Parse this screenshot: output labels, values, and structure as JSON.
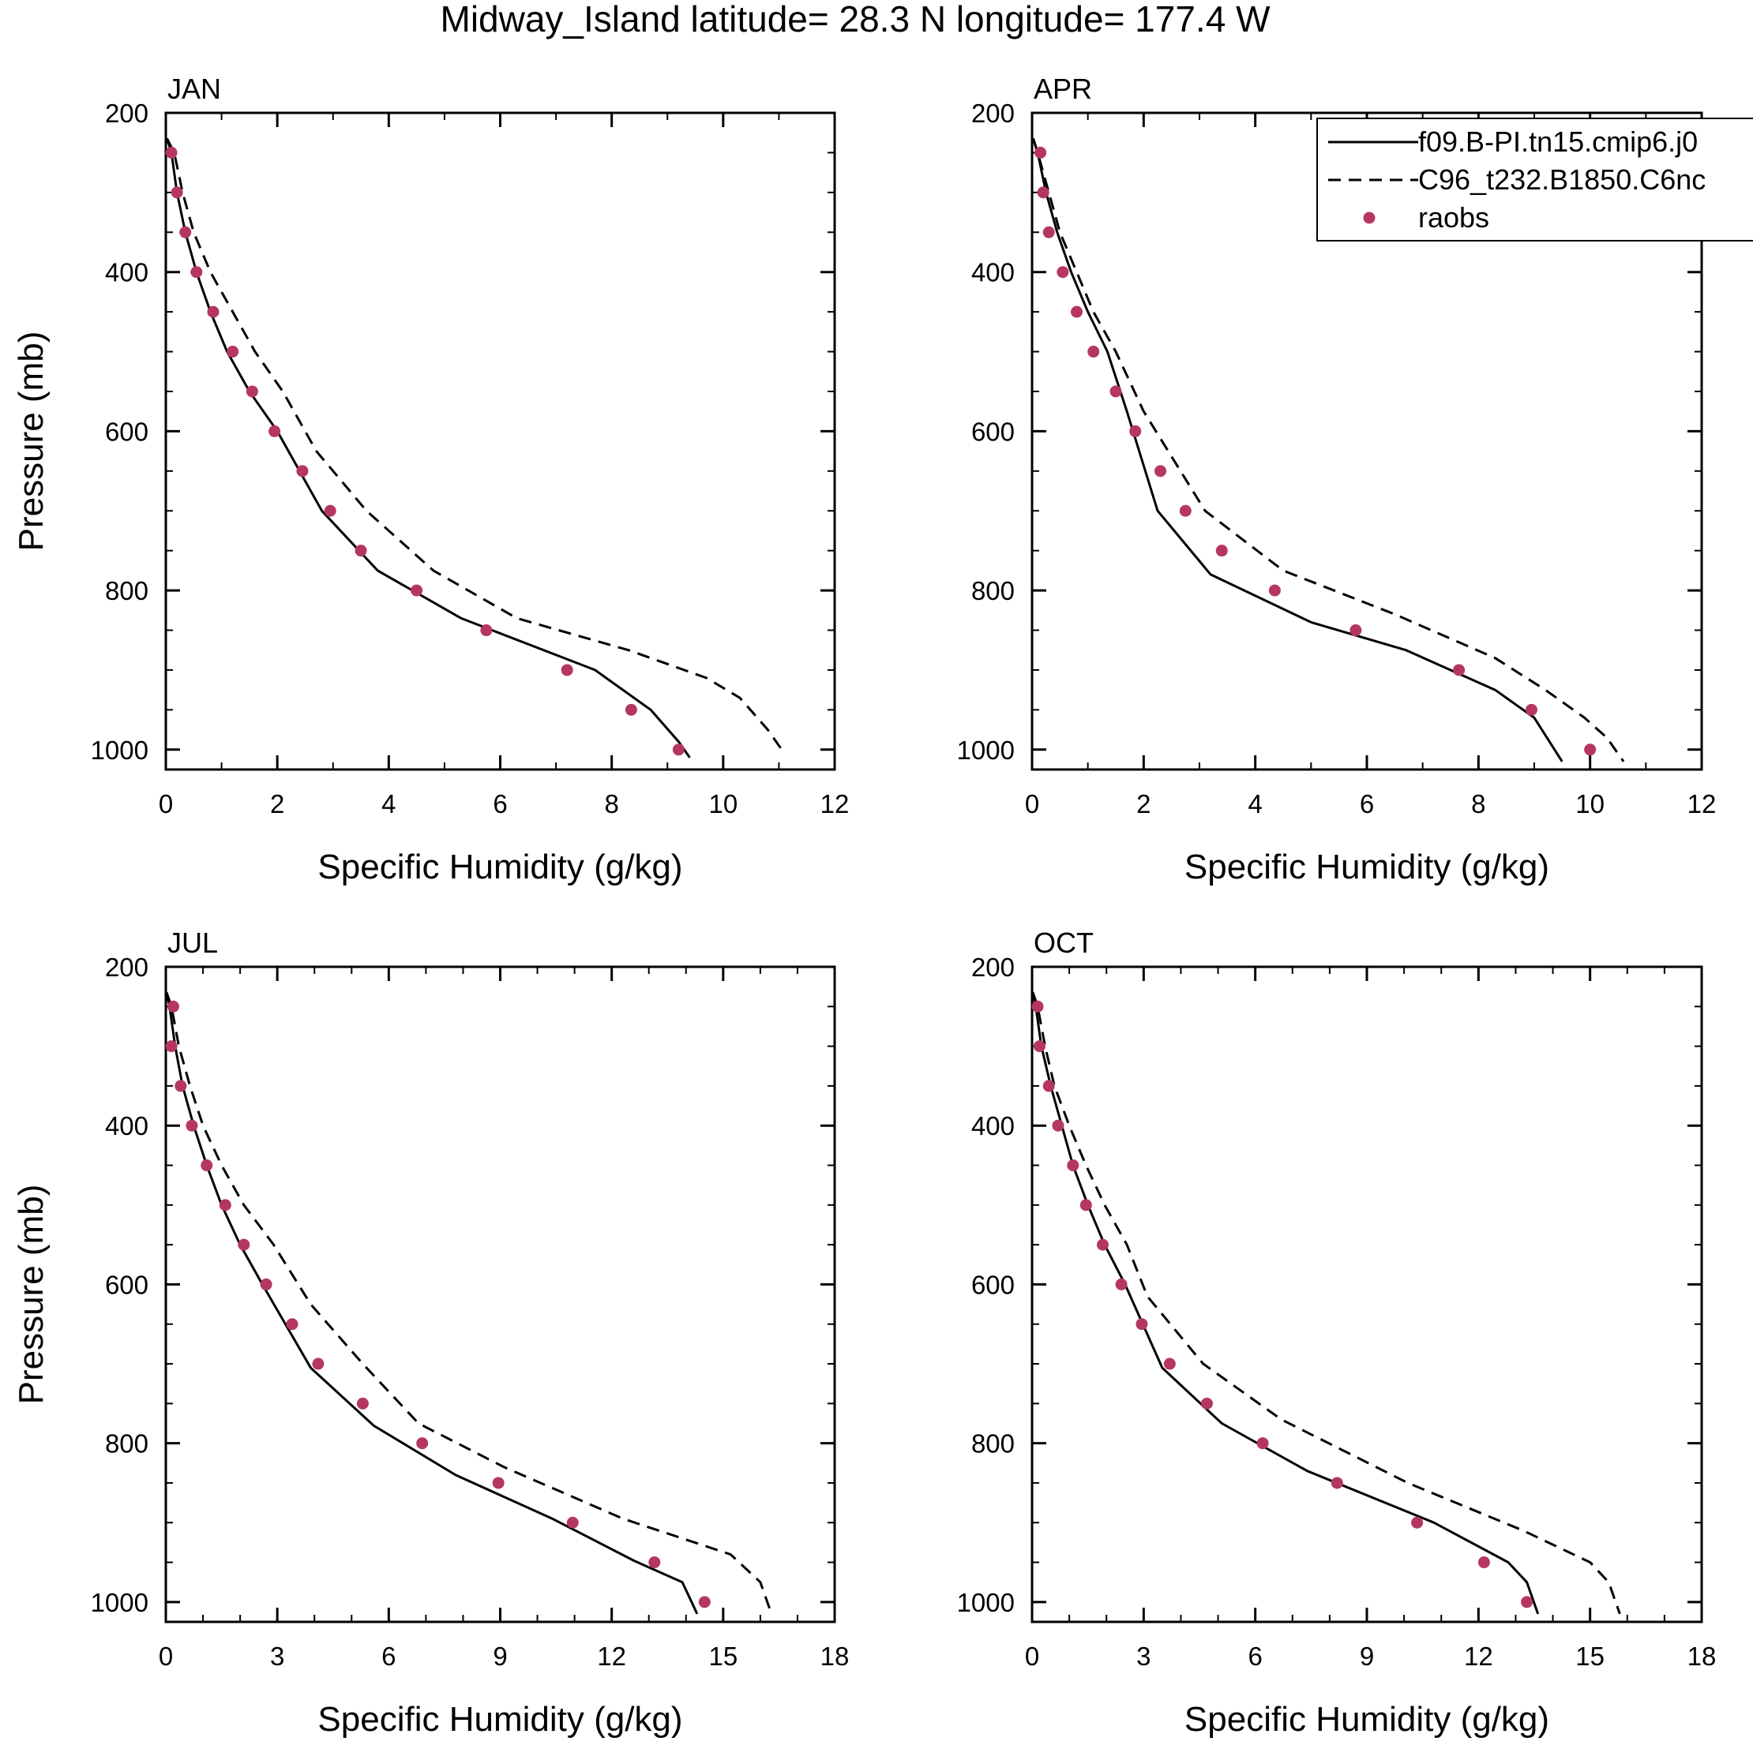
{
  "figure_title": "Midway_Island  latitude= 28.3 N longitude= 177.4 W",
  "colors": {
    "obs": "#b5375f",
    "axis": "#000000"
  },
  "legend": {
    "entries": [
      {
        "label": "f09.B-PI.tn15.cmip6.j0",
        "style": "solid"
      },
      {
        "label": "C96_t232.B1850.C6nc",
        "style": "dashed"
      },
      {
        "label": "raobs",
        "style": "marker"
      }
    ]
  },
  "chart_data": [
    {
      "type": "line",
      "title": "JAN",
      "xlabel": "Specific Humidity (g/kg)",
      "ylabel": "Pressure (mb)",
      "xlim": [
        0,
        12
      ],
      "ylim": [
        200,
        1025
      ],
      "xticks": [
        0,
        2,
        4,
        6,
        8,
        10,
        12
      ],
      "yticks": [
        200,
        400,
        600,
        800,
        1000
      ],
      "series": [
        {
          "name": "f09.B-PI.tn15.cmip6.j0",
          "style": "solid",
          "x": [
            0.02,
            0.1,
            0.2,
            0.35,
            0.55,
            0.8,
            1.1,
            1.5,
            2.0,
            2.8,
            3.8,
            5.3,
            7.7,
            8.7,
            9.2,
            9.4
          ],
          "y": [
            232,
            250,
            300,
            350,
            400,
            450,
            500,
            550,
            600,
            700,
            775,
            835,
            900,
            950,
            990,
            1010
          ]
        },
        {
          "name": "C96_t232.B1850.C6nc",
          "style": "dashed",
          "x": [
            0.02,
            0.15,
            0.3,
            0.5,
            0.8,
            1.2,
            1.6,
            2.1,
            2.7,
            3.6,
            4.8,
            6.3,
            8.3,
            9.7,
            10.3,
            10.8,
            11.1
          ],
          "y": [
            232,
            250,
            300,
            350,
            400,
            450,
            500,
            550,
            625,
            700,
            775,
            835,
            875,
            910,
            935,
            975,
            1005
          ]
        },
        {
          "name": "raobs",
          "style": "marker",
          "x": [
            0.1,
            0.2,
            0.35,
            0.55,
            0.85,
            1.2,
            1.55,
            1.95,
            2.45,
            2.95,
            3.5,
            4.5,
            5.75,
            7.2,
            8.35,
            9.2
          ],
          "y": [
            250,
            300,
            350,
            400,
            450,
            500,
            550,
            600,
            650,
            700,
            750,
            800,
            850,
            900,
            950,
            1000
          ]
        }
      ]
    },
    {
      "type": "line",
      "title": "APR",
      "xlabel": "Specific Humidity (g/kg)",
      "ylabel": "",
      "xlim": [
        0,
        12
      ],
      "ylim": [
        200,
        1025
      ],
      "xticks": [
        0,
        2,
        4,
        6,
        8,
        10,
        12
      ],
      "yticks": [
        200,
        400,
        600,
        800,
        1000
      ],
      "series": [
        {
          "name": "f09.B-PI.tn15.cmip6.j0",
          "style": "solid",
          "x": [
            0.02,
            0.1,
            0.25,
            0.45,
            0.7,
            1.0,
            1.35,
            1.7,
            2.25,
            3.2,
            5.0,
            6.7,
            8.3,
            9.0,
            9.5
          ],
          "y": [
            232,
            250,
            300,
            350,
            400,
            450,
            500,
            575,
            700,
            780,
            840,
            875,
            925,
            960,
            1015
          ]
        },
        {
          "name": "C96_t232.B1850.C6nc",
          "style": "dashed",
          "x": [
            0.02,
            0.1,
            0.3,
            0.5,
            0.8,
            1.1,
            1.5,
            2.0,
            3.1,
            4.5,
            6.5,
            8.3,
            9.2,
            9.9,
            10.3,
            10.6
          ],
          "y": [
            232,
            250,
            300,
            350,
            400,
            450,
            500,
            575,
            700,
            775,
            830,
            885,
            925,
            960,
            985,
            1015
          ]
        },
        {
          "name": "raobs",
          "style": "marker",
          "x": [
            0.15,
            0.2,
            0.3,
            0.55,
            0.8,
            1.1,
            1.5,
            1.85,
            2.3,
            2.75,
            3.4,
            4.35,
            5.8,
            7.65,
            8.95,
            10.0
          ],
          "y": [
            250,
            300,
            350,
            400,
            450,
            500,
            550,
            600,
            650,
            700,
            750,
            800,
            850,
            900,
            950,
            1000
          ]
        }
      ]
    },
    {
      "type": "line",
      "title": "JUL",
      "xlabel": "Specific Humidity (g/kg)",
      "ylabel": "Pressure (mb)",
      "xlim": [
        0,
        18
      ],
      "ylim": [
        200,
        1025
      ],
      "xticks": [
        0,
        3,
        6,
        9,
        12,
        15,
        18
      ],
      "yticks": [
        200,
        400,
        600,
        800,
        1000
      ],
      "series": [
        {
          "name": "f09.B-PI.tn15.cmip6.j0",
          "style": "solid",
          "x": [
            0.02,
            0.1,
            0.25,
            0.45,
            0.75,
            1.1,
            1.5,
            2.0,
            2.6,
            3.9,
            5.6,
            7.8,
            10.4,
            12.6,
            13.9,
            14.3
          ],
          "y": [
            232,
            250,
            300,
            350,
            400,
            450,
            500,
            550,
            600,
            705,
            778,
            840,
            895,
            948,
            975,
            1015
          ]
        },
        {
          "name": "C96_t232.B1850.C6nc",
          "style": "dashed",
          "x": [
            0.02,
            0.15,
            0.35,
            0.65,
            1.0,
            1.5,
            2.1,
            2.9,
            3.9,
            5.3,
            6.8,
            9.1,
            12.3,
            15.2,
            16.0,
            16.3
          ],
          "y": [
            232,
            250,
            300,
            350,
            400,
            450,
            500,
            550,
            625,
            700,
            775,
            830,
            895,
            940,
            975,
            1015
          ]
        },
        {
          "name": "raobs",
          "style": "marker",
          "x": [
            0.2,
            0.15,
            0.4,
            0.7,
            1.1,
            1.6,
            2.1,
            2.7,
            3.4,
            4.1,
            5.3,
            6.9,
            8.95,
            10.95,
            13.15,
            14.5
          ],
          "y": [
            250,
            300,
            350,
            400,
            450,
            500,
            550,
            600,
            650,
            700,
            750,
            800,
            850,
            900,
            950,
            1000
          ]
        }
      ]
    },
    {
      "type": "line",
      "title": "OCT",
      "xlabel": "Specific Humidity (g/kg)",
      "ylabel": "",
      "xlim": [
        0,
        18
      ],
      "ylim": [
        200,
        1025
      ],
      "xticks": [
        0,
        3,
        6,
        9,
        12,
        15,
        18
      ],
      "yticks": [
        200,
        400,
        600,
        800,
        1000
      ],
      "series": [
        {
          "name": "f09.B-PI.tn15.cmip6.j0",
          "style": "solid",
          "x": [
            0.02,
            0.1,
            0.25,
            0.5,
            0.8,
            1.1,
            1.5,
            1.95,
            2.5,
            3.5,
            5.1,
            7.4,
            10.8,
            12.8,
            13.3,
            13.6
          ],
          "y": [
            232,
            250,
            300,
            350,
            400,
            450,
            500,
            550,
            600,
            705,
            775,
            835,
            900,
            950,
            975,
            1015
          ]
        },
        {
          "name": "C96_t232.B1850.C6nc",
          "style": "dashed",
          "x": [
            0.02,
            0.15,
            0.35,
            0.6,
            1.0,
            1.45,
            1.95,
            2.55,
            3.1,
            4.6,
            6.7,
            10.1,
            13.2,
            15.0,
            15.5,
            15.8
          ],
          "y": [
            232,
            250,
            300,
            350,
            400,
            450,
            500,
            550,
            615,
            700,
            770,
            850,
            910,
            950,
            975,
            1015
          ]
        },
        {
          "name": "raobs",
          "style": "marker",
          "x": [
            0.15,
            0.2,
            0.45,
            0.7,
            1.1,
            1.45,
            1.9,
            2.4,
            2.95,
            3.7,
            4.7,
            6.2,
            8.2,
            10.35,
            12.15,
            13.3
          ],
          "y": [
            250,
            300,
            350,
            400,
            450,
            500,
            550,
            600,
            650,
            700,
            750,
            800,
            850,
            900,
            950,
            1000
          ]
        }
      ]
    }
  ]
}
